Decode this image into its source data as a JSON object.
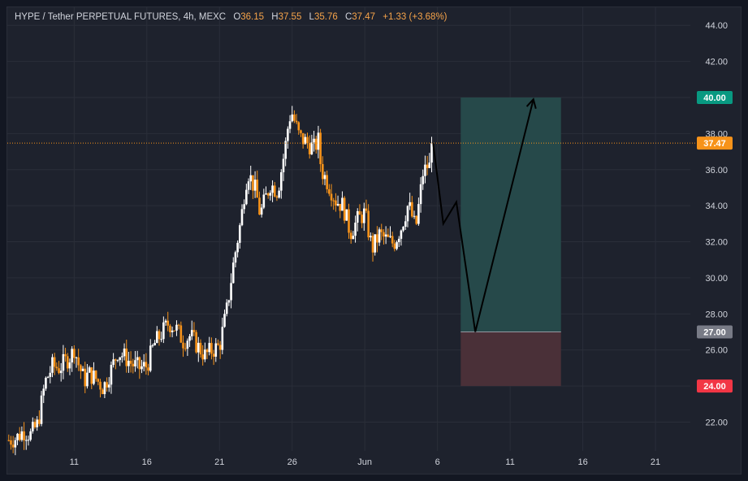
{
  "legend": {
    "symbol": "HYPE / Tether PERPETUAL FUTURES, 4h, MEXC",
    "o_label": "O",
    "o_value": "36.15",
    "h_label": "H",
    "h_value": "37.55",
    "l_label": "L",
    "l_value": "35.76",
    "c_label": "C",
    "c_value": "37.47",
    "change": "+1.33 (+3.68%)"
  },
  "colors": {
    "background": "#1e222d",
    "grid": "#2a2e39",
    "candle_up": "#ffffff",
    "candle_down": "#f7931a",
    "price_line": "#f7931a",
    "target_zone": "#26494a",
    "stop_zone": "#4a3038",
    "target_badge": "#089981",
    "entry_badge": "#787b86",
    "stop_badge": "#f23645",
    "price_badge": "#f7931a"
  },
  "chart_data": {
    "type": "candlestick",
    "title": "HYPE / Tether PERPETUAL FUTURES, 4h, MEXC",
    "ylim": [
      20.4,
      45.0
    ],
    "y_ticks": [
      "22.00",
      "24.00",
      "26.00",
      "28.00",
      "30.00",
      "32.00",
      "34.00",
      "36.00",
      "38.00",
      "40.00",
      "42.00",
      "44.00"
    ],
    "x_ticks": [
      {
        "label": "11",
        "day": 11
      },
      {
        "label": "16",
        "day": 16
      },
      {
        "label": "21",
        "day": 21
      },
      {
        "label": "26",
        "day": 26
      },
      {
        "label": "Jun",
        "day": 31
      },
      {
        "label": "6",
        "day": 36
      },
      {
        "label": "11",
        "day": 41
      },
      {
        "label": "16",
        "day": 46
      },
      {
        "label": "21",
        "day": 51
      }
    ],
    "x_range_days": [
      6.4,
      53.4
    ],
    "close_path": [
      [
        6.5,
        21.0
      ],
      [
        7.0,
        21.1
      ],
      [
        7.5,
        21.5
      ],
      [
        8.0,
        21.3
      ],
      [
        8.5,
        21.9
      ],
      [
        9.0,
        24.2
      ],
      [
        9.5,
        25.1
      ],
      [
        10.0,
        25.0
      ],
      [
        10.3,
        25.3
      ],
      [
        10.8,
        25.7
      ],
      [
        11.0,
        26.1
      ],
      [
        11.3,
        25.2
      ],
      [
        11.7,
        24.3
      ],
      [
        12.0,
        24.7
      ],
      [
        12.5,
        24.4
      ],
      [
        13.0,
        23.9
      ],
      [
        13.5,
        24.8
      ],
      [
        14.0,
        25.9
      ],
      [
        14.5,
        25.6
      ],
      [
        15.0,
        25.2
      ],
      [
        15.5,
        25.0
      ],
      [
        16.0,
        25.1
      ],
      [
        16.5,
        26.3
      ],
      [
        17.0,
        26.9
      ],
      [
        17.5,
        27.5
      ],
      [
        18.0,
        27.2
      ],
      [
        18.5,
        26.5
      ],
      [
        19.0,
        26.8
      ],
      [
        19.5,
        26.2
      ],
      [
        20.0,
        25.7
      ],
      [
        20.5,
        26.0
      ],
      [
        21.0,
        26.2
      ],
      [
        21.5,
        28.2
      ],
      [
        22.0,
        31.0
      ],
      [
        22.5,
        33.3
      ],
      [
        22.8,
        35.3
      ],
      [
        23.0,
        35.8
      ],
      [
        23.5,
        34.8
      ],
      [
        23.8,
        33.5
      ],
      [
        24.0,
        34.0
      ],
      [
        24.5,
        35.2
      ],
      [
        25.0,
        34.8
      ],
      [
        25.5,
        37.1
      ],
      [
        25.8,
        38.9
      ],
      [
        26.0,
        39.1
      ],
      [
        26.5,
        37.8
      ],
      [
        27.0,
        37.5
      ],
      [
        27.5,
        37.2
      ],
      [
        27.8,
        37.6
      ],
      [
        28.0,
        36.0
      ],
      [
        28.5,
        35.2
      ],
      [
        29.0,
        34.3
      ],
      [
        29.5,
        34.0
      ],
      [
        30.0,
        32.5
      ],
      [
        30.5,
        33.2
      ],
      [
        31.0,
        33.6
      ],
      [
        31.5,
        31.6
      ],
      [
        32.0,
        32.4
      ],
      [
        32.5,
        32.1
      ],
      [
        33.0,
        31.9
      ],
      [
        33.5,
        32.8
      ],
      [
        34.0,
        34.1
      ],
      [
        34.5,
        32.7
      ],
      [
        35.0,
        35.8
      ],
      [
        35.3,
        36.2
      ],
      [
        35.5,
        36.15
      ],
      [
        35.6,
        37.47
      ]
    ],
    "projection_path": [
      [
        35.7,
        37.47
      ],
      [
        36.4,
        33.0
      ],
      [
        37.3,
        34.2
      ],
      [
        38.6,
        27.0
      ],
      [
        42.6,
        39.9
      ]
    ],
    "last_price": 37.47,
    "price_label": "37.47",
    "position": {
      "x_start_day": 37.6,
      "x_end_day": 44.5,
      "target": 40.0,
      "target_label": "40.00",
      "entry": 27.0,
      "entry_label": "27.00",
      "stop": 24.0,
      "stop_label": "24.00"
    }
  }
}
